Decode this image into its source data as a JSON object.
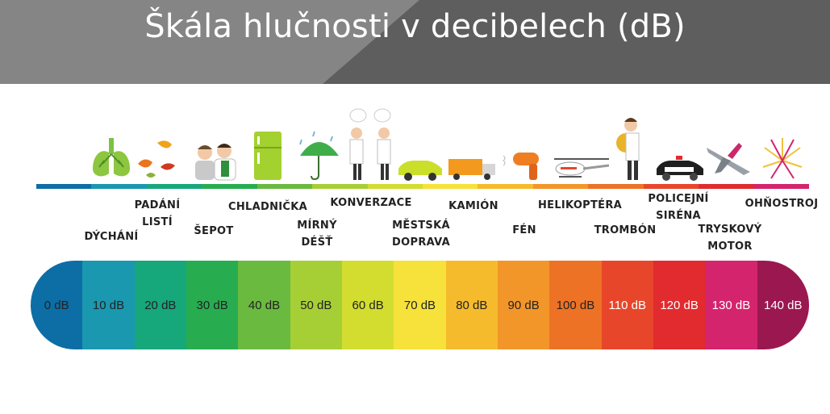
{
  "title": "Škála hlučnosti v decibelech (dB)",
  "levels": [
    {
      "db": "0 dB",
      "color": "#0d6ea6"
    },
    {
      "db": "10 dB",
      "color": "#1a98b0"
    },
    {
      "db": "20 dB",
      "color": "#16a77a"
    },
    {
      "db": "30 dB",
      "color": "#27ad50"
    },
    {
      "db": "40 dB",
      "color": "#6aba3f"
    },
    {
      "db": "50 dB",
      "color": "#a6cf36"
    },
    {
      "db": "60 dB",
      "color": "#d3dd30"
    },
    {
      "db": "70 dB",
      "color": "#f6e23a"
    },
    {
      "db": "80 dB",
      "color": "#f6bb2c"
    },
    {
      "db": "90 dB",
      "color": "#f3962a"
    },
    {
      "db": "100 dB",
      "color": "#ee7226"
    },
    {
      "db": "110 dB",
      "color": "#e8462a"
    },
    {
      "db": "120 dB",
      "color": "#e12b2f"
    },
    {
      "db": "130 dB",
      "color": "#d4246e"
    },
    {
      "db": "140 dB",
      "color": "#9b1750"
    }
  ],
  "labels": {
    "dychani": "DÝCHÁNÍ",
    "padani_listi": "PADÁNÍ\nLISTÍ",
    "sepot": "ŠEPOT",
    "chladnicka": "CHLADNIČKA",
    "mirny_dest": "MÍRNÝ\nDÉŠŤ",
    "konverzace": "KONVERZACE",
    "mestska_doprava": "MĚSTSKÁ\nDOPRAVA",
    "kamion": "KAMIÓN",
    "fen": "FÉN",
    "helikoptera": "HELIKOPTÉRA",
    "trombon": "TROMBÓN",
    "policejni_sirena": "POLICEJNÍ\nSIRÉNA",
    "tryskovy_motor": "TRYSKOVÝ\nMOTOR",
    "ohnostroj": "OHŇOSTROJ"
  },
  "icons": [
    "lungs-icon",
    "falling-leaves-icon",
    "whispering-people-icon",
    "refrigerator-icon",
    "umbrella-rain-icon",
    "talking-people-icon",
    "car-icon",
    "truck-icon",
    "hair-dryer-icon",
    "helicopter-icon",
    "trombone-player-icon",
    "police-car-icon",
    "jet-plane-icon",
    "fireworks-icon"
  ]
}
